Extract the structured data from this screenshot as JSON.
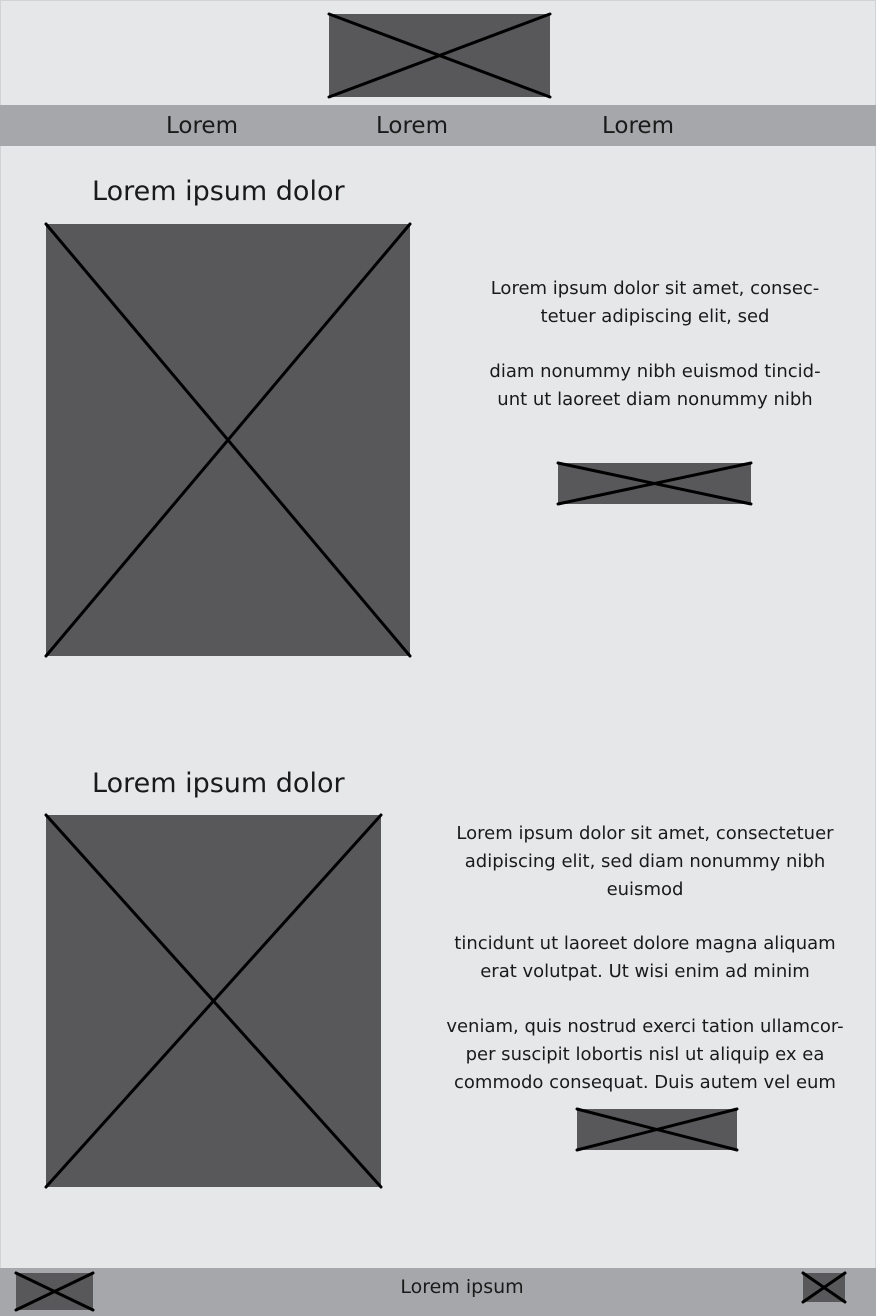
{
  "header": {
    "logo_icon": "image-placeholder-icon"
  },
  "nav": {
    "items": [
      {
        "label": "Lorem"
      },
      {
        "label": "Lorem"
      },
      {
        "label": "Lorem"
      }
    ]
  },
  "sections": [
    {
      "title": "Lorem ipsum dolor",
      "image_icon": "image-placeholder-icon",
      "paragraphs": [
        "Lorem ipsum dolor sit amet, consec-\ntetuer adipiscing elit, sed",
        "diam nonummy nibh euismod tincid-\nunt ut laoreet diam nonummy nibh"
      ],
      "button_icon": "button-placeholder-icon"
    },
    {
      "title": "Lorem ipsum dolor",
      "image_icon": "image-placeholder-icon",
      "paragraphs": [
        "Lorem ipsum dolor sit amet, consectetuer\nadipiscing elit, sed diam nonummy nibh\neuismod",
        "tincidunt ut laoreet dolore magna aliquam\nerat volutpat. Ut wisi enim ad minim",
        "veniam, quis nostrud exerci tation ullamcor-\nper suscipit lobortis nisl ut aliquip ex ea\ncommodo consequat. Duis autem vel eum"
      ],
      "button_icon": "button-placeholder-icon"
    }
  ],
  "footer": {
    "text": "Lorem ipsum",
    "left_icon": "image-placeholder-icon",
    "right_icon": "image-placeholder-icon"
  },
  "colors": {
    "page_background": "#e6e7e9",
    "bar_background": "#a6a7aa",
    "placeholder_fill": "#58585a",
    "placeholder_stroke": "#000000"
  }
}
